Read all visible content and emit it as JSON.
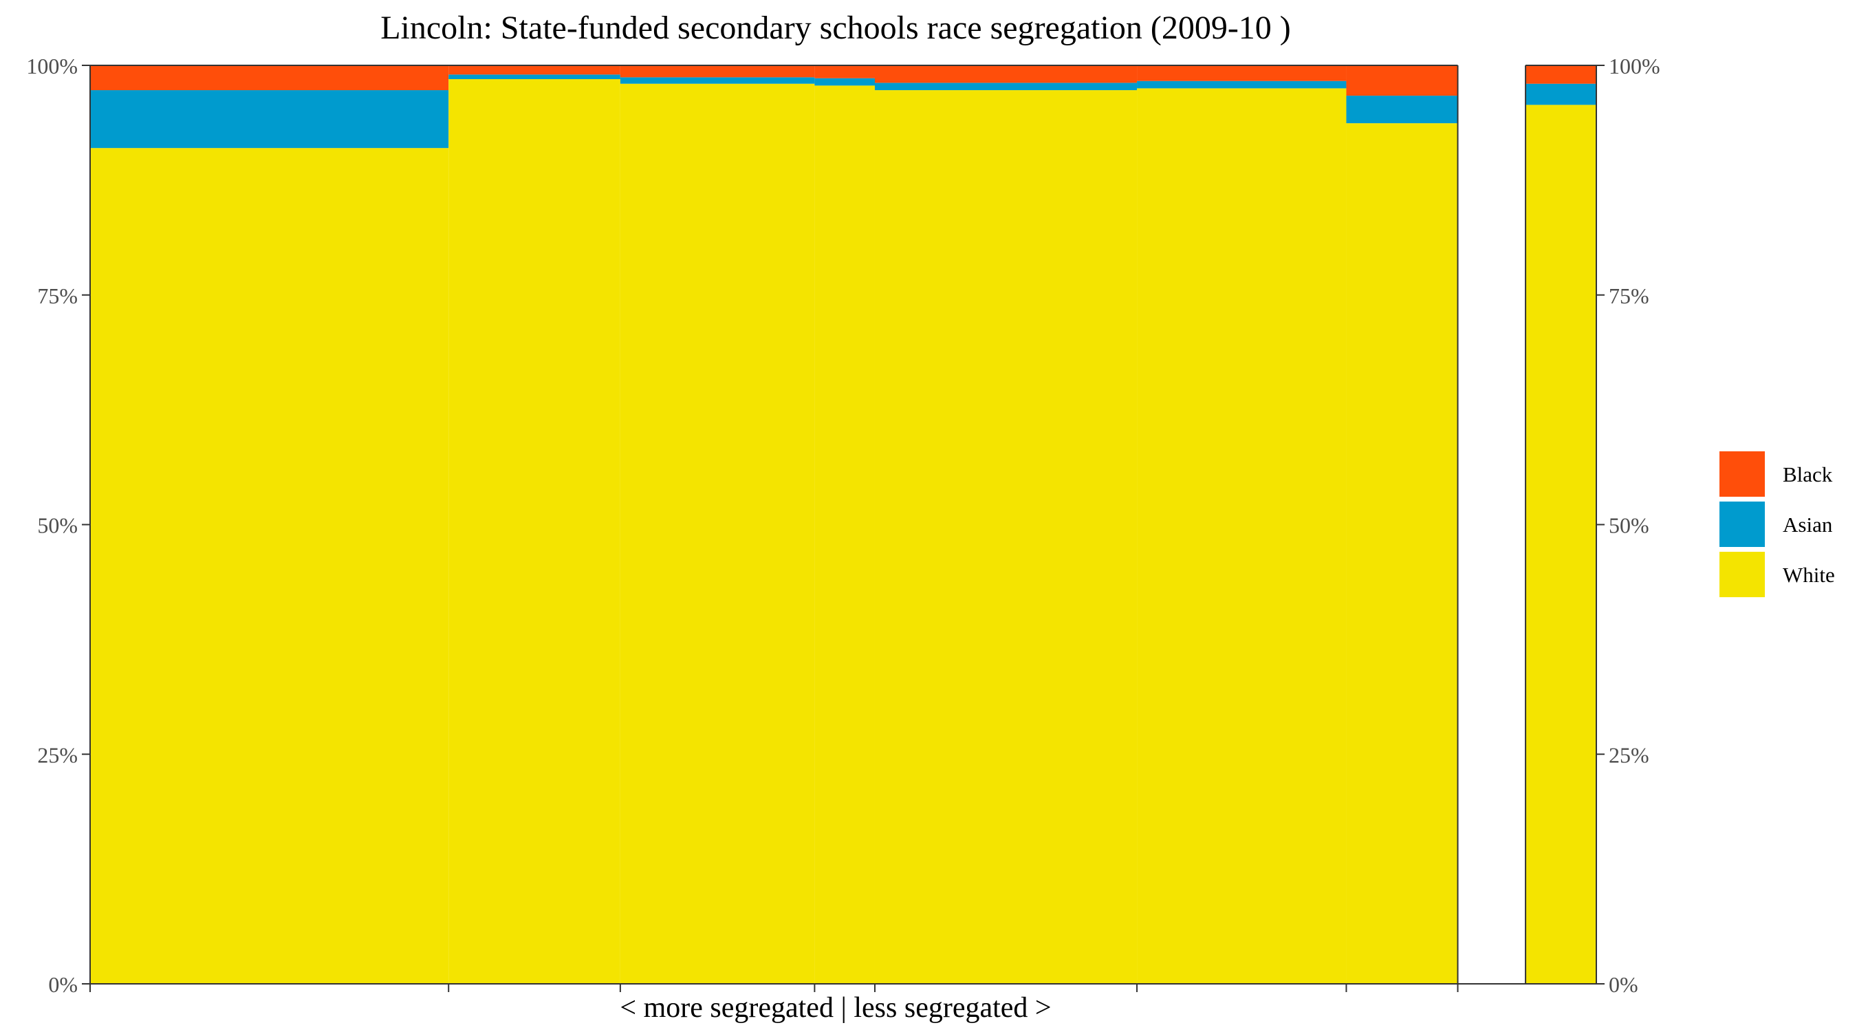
{
  "chart_data": {
    "type": "bar",
    "subtype": "stacked-variable-width (mosaic)",
    "title": "Lincoln: State-funded secondary schools race segregation (2009-10 )",
    "xlabel": "< more segregated | less segregated >",
    "ylabel": "",
    "ylim": [
      0,
      100
    ],
    "y_ticks": [
      "0%",
      "25%",
      "50%",
      "75%",
      "100%"
    ],
    "y_tick_values": [
      0,
      25,
      50,
      75,
      100
    ],
    "secondary_y_axis": true,
    "x_scale_max": 1.0,
    "series_order_bottom_to_top": [
      "White",
      "Asian",
      "Black"
    ],
    "legend": {
      "position": "right",
      "entries": [
        {
          "name": "Black",
          "color": "#FF4E0A"
        },
        {
          "name": "Asian",
          "color": "#009BCE"
        },
        {
          "name": "White",
          "color": "#F4E400"
        }
      ]
    },
    "bars": [
      {
        "x_start": 0.0,
        "x_end": 0.238,
        "White": 91.0,
        "Asian": 6.3,
        "Black": 2.7
      },
      {
        "x_start": 0.238,
        "x_end": 0.352,
        "White": 98.5,
        "Asian": 0.5,
        "Black": 1.0
      },
      {
        "x_start": 0.352,
        "x_end": 0.481,
        "White": 98.0,
        "Asian": 0.7,
        "Black": 1.3
      },
      {
        "x_start": 0.481,
        "x_end": 0.521,
        "White": 97.8,
        "Asian": 0.8,
        "Black": 1.4
      },
      {
        "x_start": 0.521,
        "x_end": 0.695,
        "White": 97.3,
        "Asian": 0.8,
        "Black": 1.9
      },
      {
        "x_start": 0.695,
        "x_end": 0.834,
        "White": 97.5,
        "Asian": 0.8,
        "Black": 1.7
      },
      {
        "x_start": 0.834,
        "x_end": 0.908,
        "White": 93.7,
        "Asian": 3.0,
        "Black": 3.3
      }
    ],
    "overall_bar": {
      "x_start": 0.953,
      "x_end": 1.0,
      "White": 95.7,
      "Asian": 2.3,
      "Black": 2.0
    },
    "panel_separator": {
      "x_start": 0.908,
      "x_end": 0.953
    },
    "x_ticks_at": [
      0.0,
      0.238,
      0.352,
      0.481,
      0.521,
      0.695,
      0.834,
      0.908
    ],
    "grid": false
  }
}
